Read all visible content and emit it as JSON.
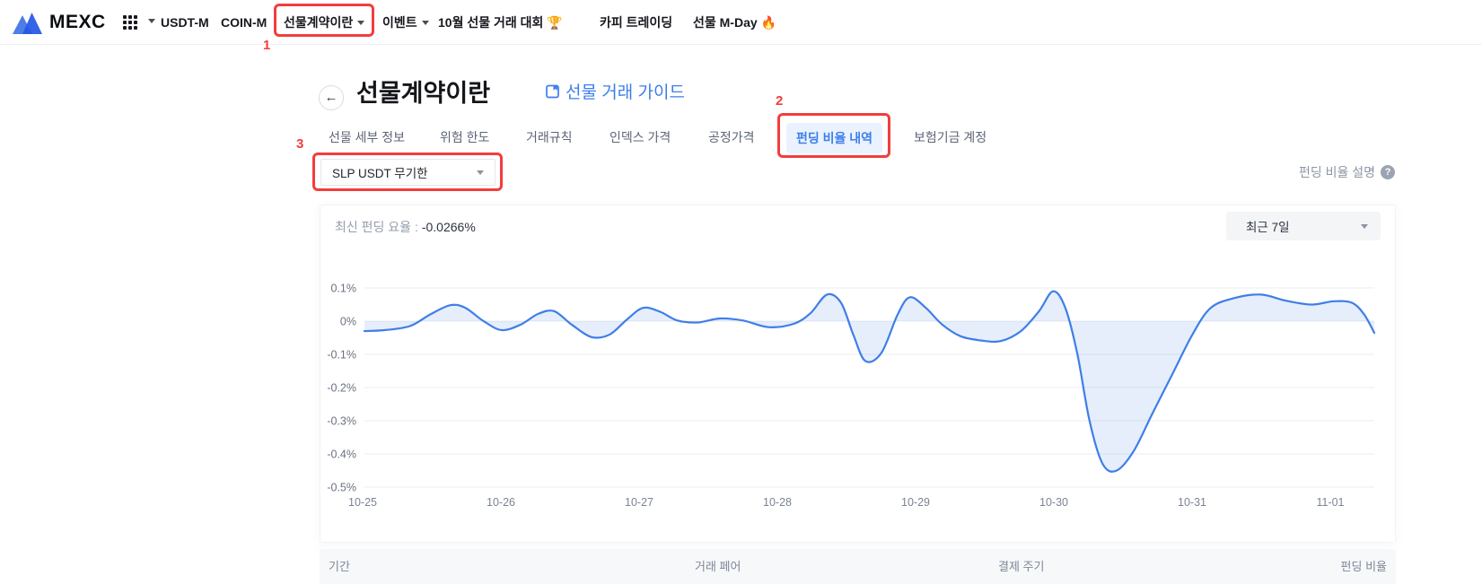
{
  "nav": {
    "logo": "MEXC",
    "items": [
      {
        "label": "USDT-M"
      },
      {
        "label": "COIN-M"
      },
      {
        "label": "선물계약이란"
      },
      {
        "label": "이벤트"
      },
      {
        "label": "10월 선물 거래 대회"
      },
      {
        "label": "카피 트레이딩"
      },
      {
        "label": "선물 M-Day"
      }
    ],
    "trophy_emoji": "🏆",
    "fire_emoji": "🔥"
  },
  "annotations": {
    "step1": "1",
    "step2": "2",
    "step3": "3"
  },
  "header": {
    "back_arrow": "←",
    "title": "선물계약이란",
    "guide_link": "선물 거래 가이드"
  },
  "tabs": [
    {
      "label": "선물 세부 정보"
    },
    {
      "label": "위험 한도"
    },
    {
      "label": "거래규칙"
    },
    {
      "label": "인덱스 가격"
    },
    {
      "label": "공정가격"
    },
    {
      "label": "펀딩 비율 내역",
      "active": true
    },
    {
      "label": "보험기금 계정"
    }
  ],
  "controls": {
    "pair_select_value": "SLP USDT 무기한",
    "help_label": "펀딩 비율 설명",
    "help_icon": "?",
    "range_select_value": "최근 7일"
  },
  "panel": {
    "latest_label": "최신 펀딩 요율 :",
    "latest_value": "-0.0266%"
  },
  "table": {
    "headers": [
      "기간",
      "거래 페어",
      "결제 주기",
      "펀딩 비율"
    ]
  },
  "colors": {
    "accent_blue": "#3d7eeb",
    "annotation_red": "#f23d3d",
    "active_tab_bg": "#e9f2fe",
    "grid_line": "#eaedf1",
    "axis_text": "#7b8494"
  },
  "chart_data": {
    "type": "area",
    "series_name": "펀딩 비율",
    "unit": "%",
    "ylim": [
      -0.5,
      0.1
    ],
    "grid": true,
    "line_color": "#3f7ee8",
    "area_color": "rgba(63,126,232,0.13)",
    "x_labels": [
      "10-25",
      "10-26",
      "10-27",
      "10-28",
      "10-29",
      "10-30",
      "10-31",
      "11-01"
    ],
    "y_ticks": [
      {
        "label": "0.1%",
        "value": 0.1
      },
      {
        "label": "0%",
        "value": 0.0
      },
      {
        "label": "-0.1%",
        "value": -0.1
      },
      {
        "label": "-0.2%",
        "value": -0.2
      },
      {
        "label": "-0.3%",
        "value": -0.3
      },
      {
        "label": "-0.4%",
        "value": -0.4
      },
      {
        "label": "-0.5%",
        "value": -0.5
      }
    ],
    "points": [
      [
        0.0,
        -0.03
      ],
      [
        0.02,
        -0.027
      ],
      [
        0.045,
        -0.015
      ],
      [
        0.065,
        0.02
      ],
      [
        0.085,
        0.048
      ],
      [
        0.1,
        0.04
      ],
      [
        0.118,
        0.0
      ],
      [
        0.136,
        -0.027
      ],
      [
        0.155,
        -0.01
      ],
      [
        0.172,
        0.022
      ],
      [
        0.188,
        0.03
      ],
      [
        0.205,
        -0.01
      ],
      [
        0.225,
        -0.048
      ],
      [
        0.243,
        -0.04
      ],
      [
        0.26,
        0.005
      ],
      [
        0.276,
        0.04
      ],
      [
        0.293,
        0.028
      ],
      [
        0.31,
        0.002
      ],
      [
        0.33,
        -0.004
      ],
      [
        0.352,
        0.008
      ],
      [
        0.375,
        0.002
      ],
      [
        0.4,
        -0.018
      ],
      [
        0.425,
        -0.008
      ],
      [
        0.442,
        0.025
      ],
      [
        0.458,
        0.08
      ],
      [
        0.472,
        0.055
      ],
      [
        0.484,
        -0.04
      ],
      [
        0.496,
        -0.12
      ],
      [
        0.512,
        -0.095
      ],
      [
        0.528,
        0.02
      ],
      [
        0.54,
        0.072
      ],
      [
        0.556,
        0.04
      ],
      [
        0.572,
        -0.01
      ],
      [
        0.59,
        -0.045
      ],
      [
        0.61,
        -0.058
      ],
      [
        0.63,
        -0.06
      ],
      [
        0.65,
        -0.03
      ],
      [
        0.668,
        0.03
      ],
      [
        0.682,
        0.09
      ],
      [
        0.694,
        0.04
      ],
      [
        0.706,
        -0.1
      ],
      [
        0.718,
        -0.3
      ],
      [
        0.731,
        -0.43
      ],
      [
        0.745,
        -0.45
      ],
      [
        0.762,
        -0.39
      ],
      [
        0.78,
        -0.28
      ],
      [
        0.8,
        -0.16
      ],
      [
        0.82,
        -0.04
      ],
      [
        0.838,
        0.04
      ],
      [
        0.862,
        0.07
      ],
      [
        0.888,
        0.08
      ],
      [
        0.912,
        0.062
      ],
      [
        0.938,
        0.05
      ],
      [
        0.96,
        0.06
      ],
      [
        0.978,
        0.055
      ],
      [
        0.99,
        0.02
      ],
      [
        1.0,
        -0.035
      ]
    ]
  }
}
